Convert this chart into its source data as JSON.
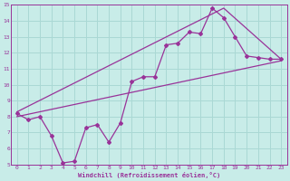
{
  "xlabel": "Windchill (Refroidissement éolien,°C)",
  "xlim": [
    -0.5,
    23.5
  ],
  "ylim": [
    5,
    15
  ],
  "xticks": [
    0,
    1,
    2,
    3,
    4,
    5,
    6,
    7,
    8,
    9,
    10,
    11,
    12,
    13,
    14,
    15,
    16,
    17,
    18,
    19,
    20,
    21,
    22,
    23
  ],
  "yticks": [
    5,
    6,
    7,
    8,
    9,
    10,
    11,
    12,
    13,
    14,
    15
  ],
  "bg_color": "#c8ece8",
  "grid_color": "#aad8d4",
  "line_color": "#993399",
  "zigzag_x": [
    0,
    1,
    2,
    3,
    4,
    5,
    6,
    7,
    8,
    9,
    10,
    11,
    12,
    13,
    14,
    15,
    16,
    17,
    18,
    19,
    20,
    21,
    22,
    23
  ],
  "zigzag_y": [
    8.2,
    7.8,
    8.0,
    6.8,
    5.1,
    5.2,
    7.3,
    7.5,
    6.4,
    7.6,
    10.2,
    10.5,
    10.5,
    12.5,
    12.6,
    13.3,
    13.2,
    14.8,
    14.2,
    13.0,
    11.8,
    11.7,
    11.6,
    11.6
  ],
  "upper_line_x": [
    0,
    18,
    23
  ],
  "upper_line_y": [
    8.3,
    14.8,
    11.6
  ],
  "lower_line_x": [
    0,
    23
  ],
  "lower_line_y": [
    8.0,
    11.5
  ]
}
